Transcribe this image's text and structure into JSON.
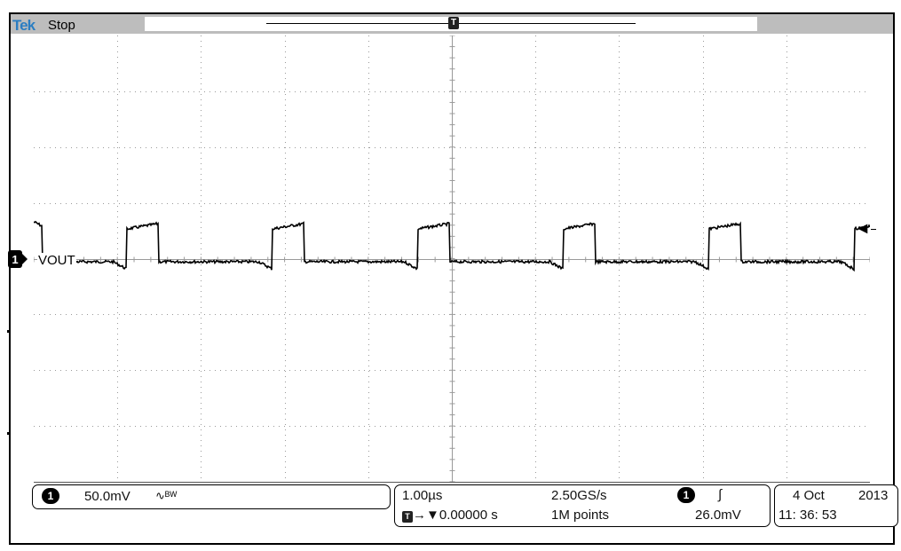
{
  "header": {
    "brand": "Tek",
    "status": "Stop"
  },
  "trace": {
    "label": "VOUT",
    "channel": "1"
  },
  "channel_panel": {
    "channel": "1",
    "scale": "50.0mV",
    "coupling_icon": "ac-bandwidth-icon",
    "bw_text": "∿ᴮᵂ"
  },
  "timebase_panel": {
    "time_per_div": "1.00µs",
    "sample_rate": "2.50GS/s",
    "trigger_channel": "1",
    "trigger_slope_icon": "rising-edge-icon",
    "slope_symbol": "∫",
    "trigger_position": "0.00000 s",
    "record_length": "1M points",
    "trigger_level": "26.0mV"
  },
  "datetime_panel": {
    "date_day": "4 Oct",
    "date_year": "2013",
    "time": "11: 36: 53"
  },
  "colors": {
    "brand": "#2a7dc2",
    "waveform": "#000000",
    "grid": "#9a9a9a",
    "topbar": "#bdbdbd"
  }
}
